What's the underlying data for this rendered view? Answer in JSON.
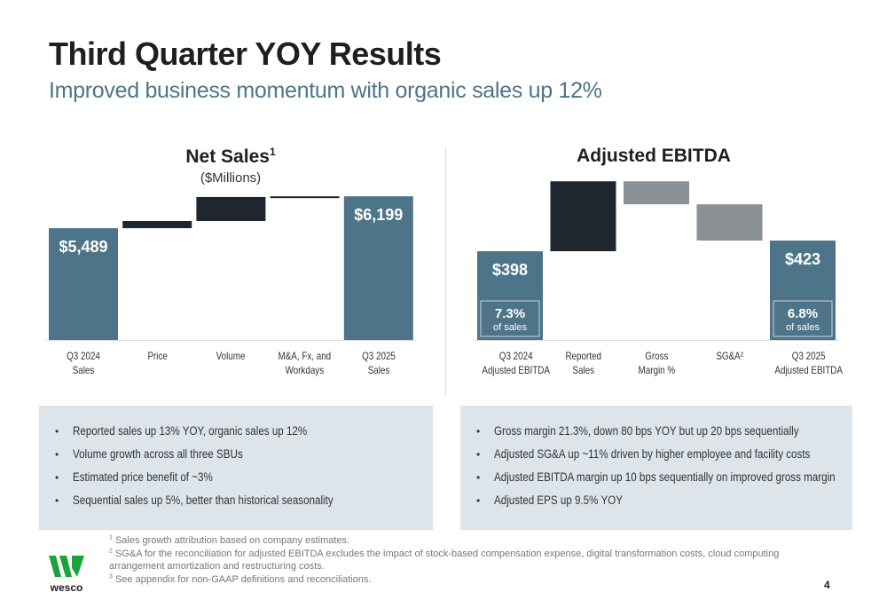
{
  "header": {
    "title": "Third Quarter YOY Results",
    "subtitle": "Improved business momentum with organic sales up 12%"
  },
  "colors": {
    "total": "#4e7489",
    "increase": "#1f262e",
    "decrease": "#8c9196",
    "panel": "#dde4ea"
  },
  "chart_data": [
    {
      "type": "waterfall",
      "title": "Net Sales",
      "title_sup": "1",
      "subtitle": "($Millions)",
      "categories": [
        "Q3 2024\nSales",
        "Price",
        "Volume",
        "M&A, Fx, and\nWorkdays",
        "Q3 2025\nSales"
      ],
      "kinds": [
        "total",
        "delta",
        "delta",
        "delta",
        "total"
      ],
      "values": [
        5489,
        160,
        535,
        15,
        6199
      ],
      "labels": [
        "$5,489",
        "",
        "",
        "",
        "$6,199"
      ],
      "ylim": [
        3000,
        6400
      ],
      "grid": false
    },
    {
      "type": "waterfall",
      "title": "Adjusted EBITDA",
      "categories": [
        "Q3 2024\nAdjusted EBITDA",
        "Reported\nSales",
        "Gross\nMargin %",
        "SG&A²",
        "Q3 2025\nAdjusted EBITDA"
      ],
      "kinds": [
        "total",
        "delta",
        "delta",
        "delta",
        "total"
      ],
      "values": [
        398,
        164,
        -54,
        -85,
        423
      ],
      "labels": [
        "$398",
        "",
        "",
        "",
        "$423"
      ],
      "margins": [
        {
          "pct": "7.3%",
          "text": "of sales"
        },
        null,
        null,
        null,
        {
          "pct": "6.8%",
          "text": "of sales"
        }
      ],
      "ylim": [
        190,
        600
      ],
      "grid": false
    }
  ],
  "panels": {
    "left": [
      "Reported sales up 13% YOY, organic sales up 12%",
      "Volume growth across all three SBUs",
      "Estimated price benefit of ~3%",
      "Sequential sales up 5%, better than historical seasonality"
    ],
    "right": [
      "Gross margin 21.3%, down 80 bps YOY but up 20 bps sequentially",
      "Adjusted SG&A up ~11% driven by higher employee and facility costs",
      "Adjusted EBITDA margin up 10 bps sequentially on improved gross margin",
      "Adjusted EPS up 9.5% YOY"
    ]
  },
  "footnotes": [
    {
      "num": "1",
      "text": "Sales growth attribution based on company estimates."
    },
    {
      "num": "2",
      "text": "SG&A for the reconciliation for adjusted EBITDA excludes the impact of stock-based compensation expense, digital transformation costs, cloud computing arrangement amortization and restructuring costs."
    },
    {
      "num": "3",
      "text": "See appendix for non-GAAP definitions and reconciliations."
    }
  ],
  "logo": {
    "text": "wesco",
    "color": "#1aa33a"
  },
  "page_number": "4"
}
